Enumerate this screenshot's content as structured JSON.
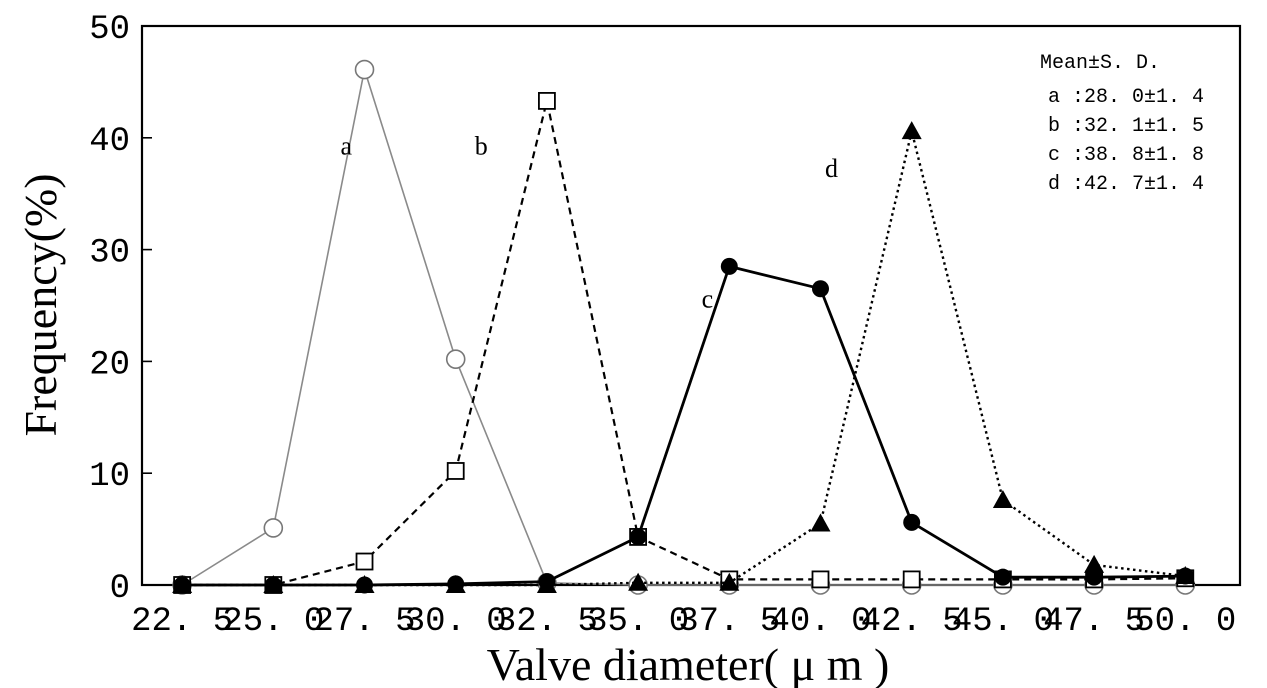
{
  "chart_data": {
    "type": "line",
    "xlabel": "Valve diameter( μ m )",
    "ylabel": "Frequency(%)",
    "x": [
      22.5,
      25.0,
      27.5,
      30.0,
      32.5,
      35.0,
      37.5,
      40.0,
      42.5,
      45.0,
      47.5,
      50.0
    ],
    "x_tick_labels": [
      "22. 5",
      "25. 0",
      "27. 5",
      "30. 0",
      "32. 5",
      "35. 0",
      "37. 5",
      "40. 0",
      "42. 5",
      "45. 0",
      "47. 5",
      "50. 0"
    ],
    "y_ticks": [
      0,
      10,
      20,
      30,
      40,
      50
    ],
    "y_tick_labels": [
      "0",
      "10",
      "20",
      "30",
      "40",
      "50"
    ],
    "xlim": [
      21.4,
      51.5
    ],
    "ylim": [
      0,
      50
    ],
    "grid": false,
    "series": [
      {
        "name": "a",
        "marker": "open-circle",
        "line_style": "thin-gray",
        "values": [
          0,
          5.1,
          46.1,
          20.2,
          0.2,
          0,
          0,
          0,
          0,
          0,
          0,
          0
        ]
      },
      {
        "name": "b",
        "marker": "open-square",
        "line_style": "dashed",
        "values": [
          0,
          0,
          2.1,
          10.2,
          43.3,
          4.3,
          0.5,
          0.5,
          0.5,
          0.5,
          0.5,
          0.6
        ]
      },
      {
        "name": "c",
        "marker": "filled-circle",
        "line_style": "solid-bold",
        "values": [
          0,
          0,
          0,
          0.1,
          0.3,
          4.3,
          28.5,
          26.5,
          5.6,
          0.7,
          0.7,
          0.8
        ]
      },
      {
        "name": "d",
        "marker": "filled-triangle",
        "line_style": "dotted",
        "values": [
          0,
          0,
          0,
          0,
          0,
          0.2,
          0.2,
          5.5,
          40.6,
          7.6,
          1.8,
          0.8
        ]
      }
    ],
    "series_labels": [
      {
        "text": "a",
        "x": 27.0,
        "y": 38.5
      },
      {
        "text": "b",
        "x": 30.7,
        "y": 38.5
      },
      {
        "text": "c",
        "x": 36.9,
        "y": 24.8
      },
      {
        "text": "d",
        "x": 40.3,
        "y": 36.5
      }
    ],
    "legend": {
      "placement": "top-right",
      "title": "Mean±S. D.",
      "entries": [
        "a :28. 0±1. 4",
        "b :32. 1±1. 5",
        "c :38. 8±1. 8",
        "d :42. 7±1. 4"
      ]
    }
  }
}
